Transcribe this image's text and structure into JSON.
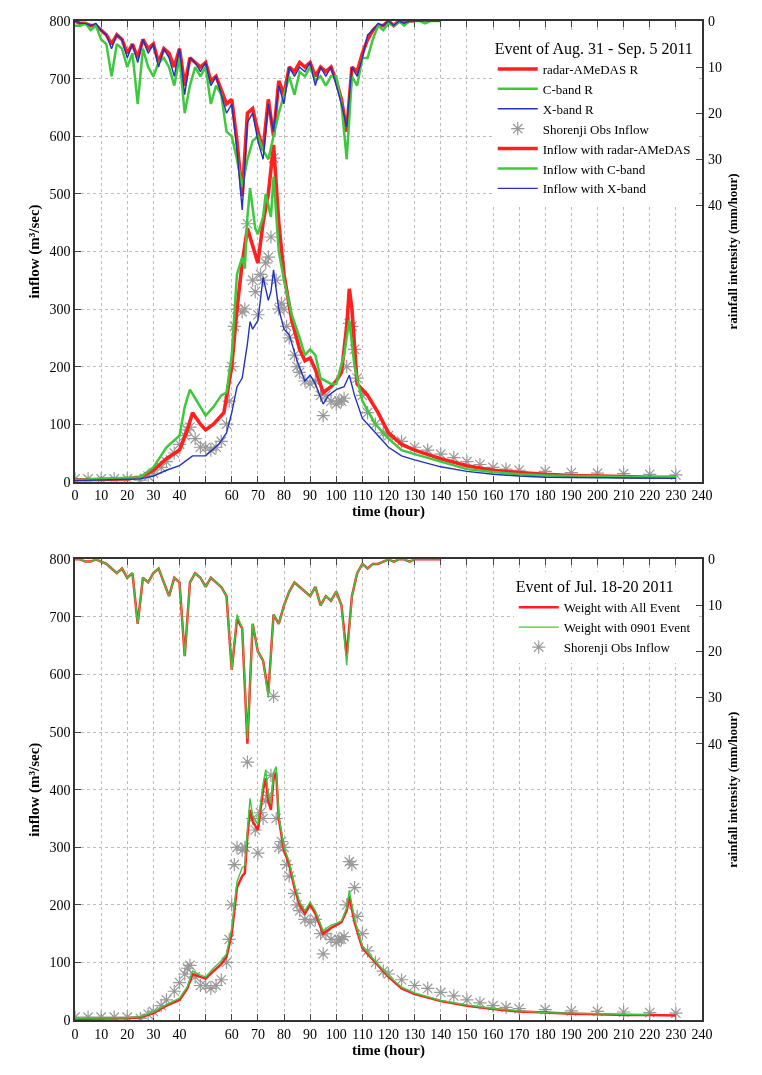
{
  "chart_data": [
    {
      "type": "line",
      "legend_title": "Event of Aug. 31 - Sep. 5 2011",
      "xlabel": "time (hour)",
      "ylabel": "inflow (m³/sec)",
      "y2label": "rainfall intensity (mm/hour)",
      "x": [
        0,
        2,
        4,
        6,
        8,
        10,
        12,
        14,
        16,
        18,
        20,
        22,
        24,
        26,
        28,
        30,
        32,
        34,
        36,
        38,
        40,
        42,
        44,
        46,
        48,
        50,
        52,
        54,
        56,
        58,
        60,
        62,
        64,
        66,
        68,
        70,
        72,
        74,
        76,
        78,
        80,
        82,
        84,
        86,
        88,
        90,
        92,
        94,
        96,
        98,
        100,
        102,
        104,
        106,
        108,
        110,
        112,
        114,
        116,
        118,
        120,
        122,
        124,
        126,
        128,
        130,
        132,
        134,
        136,
        138,
        140
      ],
      "xlim": [
        0,
        240
      ],
      "xticks": [
        0,
        10,
        20,
        30,
        40,
        {
          "value": 50,
          "label": null
        },
        60,
        70,
        80,
        90,
        100,
        110,
        120,
        130,
        140,
        150,
        160,
        170,
        180,
        190,
        200,
        210,
        220,
        230,
        240
      ],
      "ylim": [
        0,
        800
      ],
      "yticks": [
        0,
        100,
        200,
        300,
        400,
        500,
        600,
        700,
        800
      ],
      "y2lim": [
        100,
        0
      ],
      "y2ticks": [
        0,
        10,
        20,
        30,
        40
      ],
      "grid": true,
      "legend": "top right",
      "line_style": "solid",
      "series": [
        {
          "name": "radar-AMeDAS R",
          "color": "#ff2020",
          "axis": "y2",
          "values": [
            0,
            0.5,
            0.5,
            1,
            1,
            2,
            3,
            5,
            3,
            4,
            7,
            5,
            8,
            4,
            6,
            5,
            9,
            6,
            7,
            10,
            6,
            14,
            8,
            9,
            10,
            9,
            13,
            12,
            15,
            18,
            17,
            26,
            38,
            20,
            19,
            24,
            28,
            17,
            25,
            13,
            16,
            10,
            11,
            9,
            10,
            9,
            12,
            10,
            11,
            10,
            13,
            17,
            24,
            10,
            11,
            7,
            4,
            2,
            1,
            1,
            0,
            1,
            0,
            0.5,
            0,
            0,
            null,
            null,
            null,
            null,
            null
          ]
        },
        {
          "name": "C-band R",
          "color": "#3ec83e",
          "axis": "y2",
          "values": [
            1,
            1,
            0.5,
            2,
            1,
            4,
            5,
            12,
            5,
            6,
            10,
            7,
            18,
            6,
            10,
            12,
            9,
            8,
            10,
            14,
            8,
            20,
            14,
            10,
            12,
            10,
            18,
            14,
            16,
            24,
            25,
            30,
            36,
            30,
            26,
            25,
            28,
            30,
            25,
            20,
            16,
            12,
            16,
            11,
            12,
            10,
            13,
            12,
            14,
            12,
            12,
            18,
            30,
            12,
            14,
            8,
            8,
            4,
            1,
            2,
            0.5,
            1,
            0,
            1,
            0,
            0,
            0,
            0.5,
            0,
            0,
            0
          ]
        },
        {
          "name": "X-band R",
          "color": "#2233bb",
          "axis": "y2",
          "values": [
            0,
            0.5,
            0.5,
            1,
            0.5,
            2,
            3,
            6,
            3,
            4,
            8,
            5,
            9,
            4,
            7,
            5,
            10,
            6,
            8,
            12,
            6,
            16,
            8,
            9,
            11,
            9,
            14,
            12,
            16,
            20,
            18,
            28,
            41,
            22,
            20,
            26,
            30,
            18,
            24,
            14,
            18,
            10,
            12,
            10,
            11,
            9,
            14,
            10,
            12,
            10,
            14,
            18,
            23,
            10,
            12,
            8,
            3,
            2,
            0.5,
            1,
            0,
            1,
            0,
            0.5,
            0,
            0,
            0,
            0,
            0,
            0,
            0
          ]
        },
        {
          "name": "Shorenji Obs Inflow",
          "type": "scatter",
          "marker": "cross",
          "color": "#999999",
          "x": [
            0,
            5,
            10,
            15,
            20,
            25,
            28,
            30,
            33,
            35,
            38,
            40,
            42,
            43,
            44,
            46,
            48,
            50,
            52,
            54,
            56,
            58,
            59,
            60,
            61,
            62,
            64,
            65,
            66,
            68,
            69,
            70,
            71,
            72,
            73,
            74,
            75,
            76,
            77,
            78,
            79,
            80,
            81,
            82,
            84,
            85,
            86,
            88,
            90,
            92,
            94,
            95,
            96,
            98,
            100,
            101,
            102,
            103,
            104,
            105,
            106,
            107,
            108,
            110,
            112,
            115,
            118,
            120,
            125,
            130,
            135,
            140,
            145,
            150,
            155,
            160,
            165,
            170,
            180,
            190,
            200,
            210,
            220,
            230
          ],
          "values": [
            5,
            5,
            5,
            5,
            5,
            3,
            10,
            15,
            25,
            35,
            50,
            65,
            80,
            90,
            95,
            75,
            60,
            60,
            55,
            60,
            70,
            100,
            140,
            200,
            270,
            300,
            295,
            300,
            448,
            350,
            330,
            290,
            360,
            350,
            380,
            390,
            425,
            562,
            350,
            300,
            310,
            300,
            270,
            250,
            220,
            200,
            190,
            175,
            170,
            175,
            150,
            115,
            150,
            140,
            135,
            140,
            140,
            145,
            200,
            275,
            270,
            230,
            180,
            150,
            120,
            100,
            85,
            80,
            70,
            60,
            55,
            48,
            42,
            35,
            30,
            25,
            22,
            20,
            18,
            16,
            15,
            14,
            13,
            12
          ]
        },
        {
          "name": "Inflow with radar-AMeDAS",
          "color": "#ff2020",
          "x": [
            0,
            20,
            25,
            30,
            35,
            40,
            43,
            45,
            48,
            50,
            53,
            57,
            60,
            62,
            64,
            66,
            68,
            70,
            72,
            74,
            76,
            78,
            80,
            83,
            86,
            88,
            90,
            92,
            95,
            98,
            100,
            102,
            104,
            105,
            106,
            108,
            112,
            116,
            120,
            125,
            130,
            140,
            150,
            160,
            170,
            180,
            190,
            200,
            210,
            220,
            230
          ],
          "values": [
            3,
            5,
            8,
            20,
            40,
            55,
            90,
            120,
            100,
            90,
            100,
            120,
            200,
            300,
            380,
            440,
            410,
            380,
            450,
            500,
            585,
            450,
            360,
            280,
            230,
            210,
            215,
            195,
            155,
            165,
            175,
            190,
            270,
            335,
            300,
            170,
            150,
            120,
            85,
            65,
            55,
            40,
            28,
            20,
            16,
            13,
            11,
            10,
            9,
            8,
            8
          ]
        },
        {
          "name": "Inflow with C-band",
          "color": "#3ec83e",
          "x": [
            0,
            25,
            30,
            35,
            40,
            42,
            44,
            46,
            50,
            53,
            56,
            58,
            60,
            62,
            64,
            65,
            66,
            67,
            69,
            70,
            72,
            73,
            75,
            76,
            78,
            80,
            83,
            86,
            88,
            90,
            92,
            94,
            98,
            100,
            103,
            105,
            107,
            110,
            115,
            120,
            125,
            130,
            140,
            150,
            160,
            170,
            180,
            200,
            220,
            230
          ],
          "values": [
            3,
            8,
            25,
            60,
            80,
            130,
            160,
            145,
            115,
            130,
            150,
            155,
            220,
            360,
            390,
            370,
            460,
            510,
            440,
            430,
            460,
            500,
            460,
            530,
            400,
            350,
            290,
            250,
            220,
            230,
            220,
            180,
            170,
            170,
            220,
            280,
            200,
            140,
            100,
            75,
            55,
            48,
            35,
            22,
            17,
            13,
            11,
            9,
            8,
            8
          ]
        },
        {
          "name": "Inflow with X-band",
          "color": "#2233bb",
          "x": [
            0,
            25,
            30,
            35,
            40,
            45,
            48,
            50,
            55,
            58,
            60,
            62,
            64,
            66,
            67,
            68,
            70,
            72,
            74,
            75,
            76,
            78,
            80,
            82,
            85,
            88,
            90,
            92,
            95,
            97,
            100,
            103,
            105,
            107,
            110,
            115,
            120,
            125,
            130,
            140,
            150,
            160,
            170,
            180,
            200,
            230
          ],
          "values": [
            2,
            5,
            10,
            20,
            28,
            45,
            45,
            45,
            65,
            85,
            120,
            165,
            180,
            240,
            278,
            265,
            280,
            355,
            315,
            330,
            368,
            300,
            265,
            255,
            210,
            175,
            185,
            170,
            135,
            150,
            160,
            165,
            185,
            150,
            110,
            85,
            60,
            45,
            38,
            26,
            18,
            13,
            10,
            8,
            7,
            6
          ]
        }
      ]
    },
    {
      "type": "line",
      "legend_title": "Event of Jul. 18-20 2011",
      "xlabel": "time (hour)",
      "ylabel": "inflow (m³/sec)",
      "y2label": "rainfall intensity (mm/hour)",
      "x": [
        0,
        2,
        4,
        6,
        8,
        10,
        12,
        14,
        16,
        18,
        20,
        22,
        24,
        26,
        28,
        30,
        32,
        34,
        36,
        38,
        40,
        42,
        44,
        46,
        48,
        50,
        52,
        54,
        56,
        58,
        60,
        62,
        64,
        66,
        68,
        70,
        72,
        74,
        76,
        78,
        80,
        82,
        84,
        86,
        88,
        90,
        92,
        94,
        96,
        98,
        100,
        102,
        104,
        106,
        108,
        110,
        112,
        114,
        116,
        118,
        120,
        122,
        124,
        126,
        128,
        130,
        132,
        134,
        136,
        138,
        140
      ],
      "xlim": [
        0,
        240
      ],
      "xticks": [
        0,
        10,
        20,
        30,
        40,
        {
          "value": 50,
          "label": null
        },
        60,
        70,
        80,
        90,
        100,
        110,
        120,
        130,
        140,
        150,
        160,
        170,
        180,
        190,
        200,
        210,
        220,
        230,
        240
      ],
      "ylim": [
        0,
        800
      ],
      "yticks": [
        0,
        100,
        200,
        300,
        400,
        500,
        600,
        700,
        800
      ],
      "y2lim": [
        100,
        0
      ],
      "y2ticks": [
        0,
        10,
        20,
        30,
        40
      ],
      "grid": true,
      "legend": "top right",
      "line_style": "solid",
      "series": [
        {
          "color": "#ff2020",
          "axis": "y2",
          "values": [
            0,
            0,
            0.5,
            0.5,
            0,
            0.5,
            1,
            2,
            3,
            2,
            4,
            3,
            14,
            4,
            5,
            3,
            2,
            5,
            8,
            4,
            5,
            21,
            5,
            3,
            4,
            6,
            4,
            5,
            6,
            8,
            24,
            13,
            15,
            40,
            14,
            20,
            22,
            29,
            12,
            14,
            10,
            7,
            5,
            6,
            7,
            8,
            6,
            10,
            8,
            9,
            7,
            10,
            21,
            8,
            3,
            1,
            2,
            1,
            1,
            0.5,
            0,
            0.5,
            0,
            0,
            0.5,
            0,
            0,
            0,
            0,
            0,
            0
          ]
        },
        {
          "color": "#3ec83e",
          "axis": "y2",
          "values": [
            null,
            0,
            0.5,
            0.5,
            0,
            0.5,
            1,
            2,
            3,
            2,
            4,
            3,
            14,
            4,
            5,
            3,
            2,
            5,
            8,
            4,
            5,
            21,
            5,
            3,
            4,
            6,
            4,
            5,
            6,
            8,
            24,
            12,
            15,
            39,
            14,
            20,
            22,
            30,
            12,
            14,
            10,
            7,
            5,
            6,
            7,
            8,
            6,
            10,
            8,
            9,
            7,
            10,
            23,
            8,
            3,
            1,
            2,
            1,
            1,
            0.5,
            0,
            0.5,
            0,
            0,
            0.5,
            0,
            null,
            null,
            null,
            null,
            null
          ]
        },
        {
          "name": "Weight with All Event",
          "color": "#ff2020",
          "x": [
            0,
            20,
            25,
            30,
            35,
            40,
            43,
            45,
            48,
            50,
            53,
            56,
            58,
            60,
            62,
            64,
            65,
            66,
            67,
            68,
            70,
            72,
            73,
            74,
            75,
            76,
            77,
            78,
            80,
            82,
            84,
            86,
            88,
            90,
            92,
            95,
            98,
            100,
            102,
            104,
            105,
            107,
            110,
            115,
            120,
            125,
            130,
            140,
            150,
            160,
            170,
            180,
            190,
            200,
            210,
            220,
            230
          ],
          "values": [
            2,
            3,
            5,
            12,
            25,
            35,
            55,
            80,
            75,
            72,
            85,
            97,
            110,
            150,
            230,
            250,
            255,
            320,
            365,
            345,
            330,
            400,
            420,
            380,
            365,
            420,
            430,
            350,
            295,
            270,
            230,
            200,
            185,
            200,
            185,
            150,
            160,
            165,
            170,
            190,
            215,
            170,
            125,
            100,
            75,
            55,
            45,
            33,
            25,
            19,
            15,
            13,
            11,
            10,
            9,
            9,
            8
          ]
        },
        {
          "name": "Weight with 0901 Event",
          "color": "#3ec83e",
          "x": [
            0,
            20,
            25,
            30,
            35,
            40,
            43,
            45,
            48,
            50,
            53,
            56,
            58,
            60,
            62,
            64,
            65,
            66,
            67,
            68,
            70,
            72,
            73,
            74,
            75,
            76,
            77,
            78,
            80,
            82,
            84,
            86,
            88,
            90,
            92,
            95,
            98,
            100,
            102,
            104,
            105,
            107,
            110,
            115,
            120,
            125,
            130,
            140,
            150,
            160,
            170,
            180,
            190,
            200,
            210,
            220
          ],
          "values": [
            3,
            4,
            6,
            14,
            27,
            38,
            58,
            85,
            78,
            75,
            90,
            103,
            115,
            160,
            240,
            265,
            268,
            330,
            385,
            355,
            340,
            410,
            435,
            390,
            375,
            430,
            440,
            355,
            300,
            275,
            235,
            205,
            190,
            205,
            190,
            155,
            165,
            168,
            172,
            195,
            225,
            175,
            128,
            102,
            77,
            57,
            47,
            34,
            26,
            20,
            16,
            13,
            12,
            11,
            10,
            9
          ]
        },
        {
          "name": "Shorenji Obs Inflow",
          "type": "scatter",
          "marker": "cross",
          "color": "#999999",
          "x": [
            0,
            5,
            10,
            15,
            20,
            25,
            28,
            30,
            33,
            35,
            38,
            40,
            42,
            43,
            44,
            46,
            48,
            50,
            52,
            54,
            56,
            58,
            59,
            60,
            61,
            62,
            64,
            65,
            66,
            68,
            69,
            70,
            71,
            72,
            73,
            74,
            75,
            76,
            77,
            78,
            79,
            80,
            81,
            82,
            84,
            85,
            86,
            88,
            90,
            92,
            94,
            95,
            96,
            98,
            100,
            101,
            102,
            103,
            104,
            105,
            106,
            107,
            108,
            110,
            112,
            115,
            118,
            120,
            125,
            130,
            135,
            140,
            145,
            150,
            155,
            160,
            165,
            170,
            180,
            190,
            200,
            210,
            220,
            230
          ],
          "values": [
            5,
            5,
            5,
            5,
            5,
            3,
            10,
            15,
            25,
            35,
            50,
            65,
            80,
            90,
            95,
            75,
            60,
            60,
            55,
            60,
            70,
            100,
            140,
            200,
            270,
            300,
            295,
            300,
            448,
            350,
            330,
            290,
            360,
            350,
            380,
            390,
            425,
            562,
            350,
            300,
            310,
            300,
            270,
            250,
            220,
            200,
            190,
            175,
            170,
            175,
            150,
            115,
            150,
            140,
            135,
            140,
            140,
            145,
            200,
            275,
            270,
            230,
            180,
            150,
            120,
            100,
            85,
            80,
            70,
            60,
            55,
            48,
            42,
            35,
            30,
            25,
            22,
            20,
            18,
            16,
            15,
            14,
            13,
            12
          ]
        }
      ]
    }
  ]
}
